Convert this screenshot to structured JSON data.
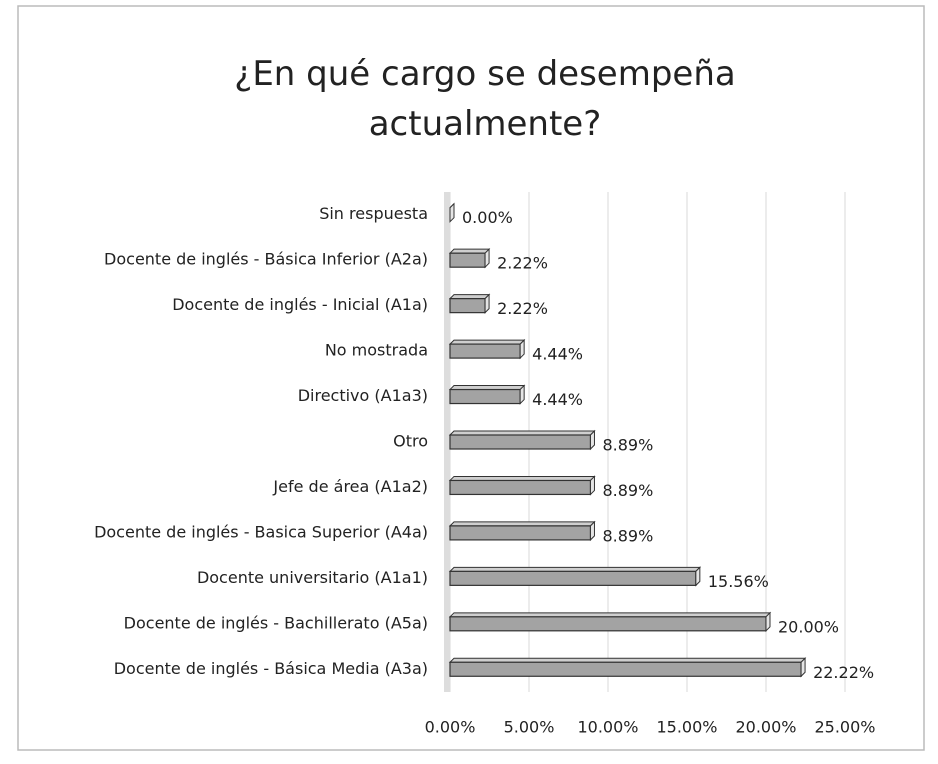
{
  "chart_data": {
    "type": "bar",
    "orientation": "horizontal",
    "title": "¿En qué cargo se desempeña actualmente?",
    "categories": [
      "Sin respuesta",
      "Docente de inglés - Básica Inferior (A2a)",
      "Docente de inglés - Inicial (A1a)",
      "No mostrada",
      "Directivo (A1a3)",
      "Otro",
      "Jefe de área (A1a2)",
      "Docente de inglés - Basica Superior (A4a)",
      "Docente universitario (A1a1)",
      "Docente de inglés - Bachillerato (A5a)",
      "Docente de inglés - Básica Media (A3a)"
    ],
    "values": [
      0.0,
      2.22,
      2.22,
      4.44,
      4.44,
      8.89,
      8.89,
      8.89,
      15.56,
      20.0,
      22.22
    ],
    "value_labels": [
      "0.00%",
      "2.22%",
      "2.22%",
      "4.44%",
      "4.44%",
      "8.89%",
      "8.89%",
      "8.89%",
      "15.56%",
      "20.00%",
      "22.22%"
    ],
    "color": "#a3a3a3",
    "xlim": [
      0,
      25
    ],
    "xticks": [
      {
        "value": 0,
        "label": "0.00%"
      },
      {
        "value": 5,
        "label": "5.00%"
      },
      {
        "value": 10,
        "label": "10.00%"
      },
      {
        "value": 15,
        "label": "15.00%"
      },
      {
        "value": 20,
        "label": "20.00%"
      },
      {
        "value": 25,
        "label": "25.00%"
      }
    ],
    "grid": true
  }
}
